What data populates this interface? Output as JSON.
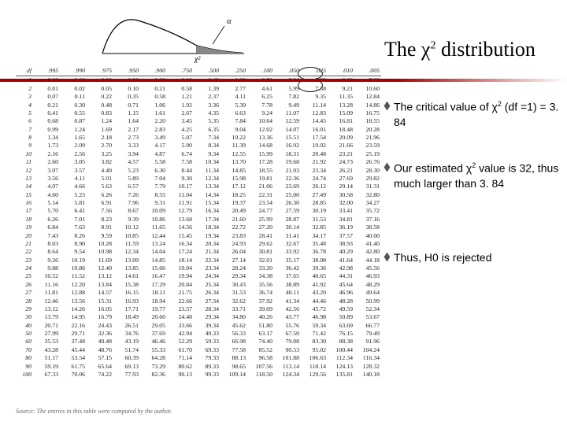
{
  "title_prefix": "The ",
  "title_symbol": "χ",
  "title_sup": "2",
  "title_suffix": " distribution",
  "curve": {
    "alpha_label": "α",
    "chi2_label": "χ²"
  },
  "notes": {
    "n1_a": "The critical value of ",
    "n1_sym": "χ",
    "n1_b": " (df =1) = 3. 84",
    "n2_a": "Our estimated ",
    "n2_sym": "χ",
    "n2_b": " value is 32, thus much larger than 3. 84",
    "n3_a": "Thus, H",
    "n3_b": " is rejected"
  },
  "table": {
    "headers": [
      "df",
      ".995",
      ".990",
      ".975",
      ".950",
      ".900",
      ".750",
      ".500",
      ".250",
      ".100",
      ".050",
      ".025",
      ".010",
      ".005"
    ],
    "rows": [
      [
        "1",
        "0.00",
        "0.00",
        "0.00",
        "0.00",
        "0.02",
        "0.10",
        "0.45",
        "1.32",
        "2.71",
        "3.84",
        "5.02",
        "6.63",
        "7.88"
      ],
      [
        "2",
        "0.01",
        "0.02",
        "0.05",
        "0.10",
        "0.21",
        "0.58",
        "1.39",
        "2.77",
        "4.61",
        "5.99",
        "7.38",
        "9.21",
        "10.60"
      ],
      [
        "3",
        "0.07",
        "0.11",
        "0.22",
        "0.35",
        "0.58",
        "1.21",
        "2.37",
        "4.11",
        "6.25",
        "7.82",
        "9.35",
        "11.35",
        "12.84"
      ],
      [
        "4",
        "0.21",
        "0.30",
        "0.48",
        "0.71",
        "1.06",
        "1.92",
        "3.36",
        "5.39",
        "7.78",
        "9.49",
        "11.14",
        "13.28",
        "14.86"
      ],
      [
        "5",
        "0.41",
        "0.55",
        "0.83",
        "1.15",
        "1.61",
        "2.67",
        "4.35",
        "6.63",
        "9.24",
        "11.07",
        "12.83",
        "15.09",
        "16.75"
      ],
      [
        "6",
        "0.68",
        "0.87",
        "1.24",
        "1.64",
        "2.20",
        "3.45",
        "5.35",
        "7.84",
        "10.64",
        "12.59",
        "14.45",
        "16.81",
        "18.55"
      ],
      [
        "7",
        "0.99",
        "1.24",
        "1.69",
        "2.17",
        "2.83",
        "4.25",
        "6.35",
        "9.04",
        "12.02",
        "14.07",
        "16.01",
        "18.48",
        "20.28"
      ],
      [
        "8",
        "1.34",
        "1.65",
        "2.18",
        "2.73",
        "3.49",
        "5.07",
        "7.34",
        "10.22",
        "13.36",
        "15.51",
        "17.54",
        "20.09",
        "21.96"
      ],
      [
        "9",
        "1.73",
        "2.09",
        "2.70",
        "3.33",
        "4.17",
        "5.90",
        "8.34",
        "11.39",
        "14.68",
        "16.92",
        "19.02",
        "21.66",
        "23.59"
      ],
      [
        "10",
        "2.16",
        "2.56",
        "3.25",
        "3.94",
        "4.87",
        "6.74",
        "9.34",
        "12.55",
        "15.99",
        "18.31",
        "20.48",
        "23.21",
        "25.19"
      ],
      [
        "11",
        "2.60",
        "3.05",
        "3.82",
        "4.57",
        "5.58",
        "7.58",
        "10.34",
        "13.70",
        "17.28",
        "19.68",
        "21.92",
        "24.73",
        "26.76"
      ],
      [
        "12",
        "3.07",
        "3.57",
        "4.40",
        "5.23",
        "6.30",
        "8.44",
        "11.34",
        "14.85",
        "18.55",
        "21.03",
        "23.34",
        "26.21",
        "28.30"
      ],
      [
        "13",
        "3.56",
        "4.11",
        "5.01",
        "5.89",
        "7.04",
        "9.30",
        "12.34",
        "15.98",
        "19.81",
        "22.36",
        "24.74",
        "27.69",
        "29.82"
      ],
      [
        "14",
        "4.07",
        "4.66",
        "5.63",
        "6.57",
        "7.79",
        "10.17",
        "13.34",
        "17.12",
        "21.06",
        "23.69",
        "26.12",
        "29.14",
        "31.31"
      ],
      [
        "15",
        "4.60",
        "5.23",
        "6.26",
        "7.26",
        "8.55",
        "11.04",
        "14.34",
        "18.25",
        "22.31",
        "25.00",
        "27.49",
        "30.58",
        "32.80"
      ],
      [
        "16",
        "5.14",
        "5.81",
        "6.91",
        "7.96",
        "9.31",
        "11.91",
        "15.34",
        "19.37",
        "23.54",
        "26.30",
        "28.85",
        "32.00",
        "34.27"
      ],
      [
        "17",
        "5.70",
        "6.41",
        "7.56",
        "8.67",
        "10.09",
        "12.79",
        "16.34",
        "20.49",
        "24.77",
        "27.59",
        "30.19",
        "33.41",
        "35.72"
      ],
      [
        "18",
        "6.26",
        "7.01",
        "8.23",
        "9.39",
        "10.86",
        "13.68",
        "17.34",
        "21.60",
        "25.99",
        "28.87",
        "31.53",
        "34.81",
        "37.16"
      ],
      [
        "19",
        "6.84",
        "7.63",
        "8.91",
        "10.12",
        "11.65",
        "14.56",
        "18.34",
        "22.72",
        "27.20",
        "30.14",
        "32.85",
        "36.19",
        "38.58"
      ],
      [
        "20",
        "7.43",
        "8.26",
        "9.59",
        "10.85",
        "12.44",
        "15.45",
        "19.34",
        "23.83",
        "28.41",
        "31.41",
        "34.17",
        "37.57",
        "40.00"
      ],
      [
        "21",
        "8.03",
        "8.90",
        "10.28",
        "11.59",
        "13.24",
        "16.34",
        "20.34",
        "24.93",
        "29.62",
        "32.67",
        "35.48",
        "38.93",
        "41.40"
      ],
      [
        "22",
        "8.64",
        "9.54",
        "10.98",
        "12.34",
        "14.04",
        "17.24",
        "21.34",
        "26.04",
        "30.81",
        "33.92",
        "36.78",
        "40.29",
        "42.80"
      ],
      [
        "23",
        "9.26",
        "10.19",
        "11.69",
        "13.09",
        "14.85",
        "18.14",
        "22.34",
        "27.14",
        "32.01",
        "35.17",
        "38.08",
        "41.64",
        "44.18"
      ],
      [
        "24",
        "9.88",
        "10.86",
        "12.40",
        "13.85",
        "15.66",
        "19.04",
        "23.34",
        "28.24",
        "33.20",
        "36.42",
        "39.36",
        "42.98",
        "45.56"
      ],
      [
        "25",
        "10.52",
        "11.52",
        "13.12",
        "14.61",
        "16.47",
        "19.94",
        "24.34",
        "29.34",
        "34.38",
        "37.65",
        "40.65",
        "44.31",
        "46.93"
      ],
      [
        "26",
        "11.16",
        "12.20",
        "13.84",
        "15.38",
        "17.29",
        "20.84",
        "25.34",
        "30.43",
        "35.56",
        "38.89",
        "41.92",
        "45.64",
        "48.29"
      ],
      [
        "27",
        "11.81",
        "12.88",
        "14.57",
        "16.15",
        "18.11",
        "21.75",
        "26.34",
        "31.53",
        "36.74",
        "40.11",
        "43.20",
        "46.96",
        "49.64"
      ],
      [
        "28",
        "12.46",
        "13.56",
        "15.31",
        "16.93",
        "18.94",
        "22.66",
        "27.34",
        "32.62",
        "37.92",
        "41.34",
        "44.46",
        "48.28",
        "50.99"
      ],
      [
        "29",
        "13.12",
        "14.26",
        "16.05",
        "17.71",
        "19.77",
        "23.57",
        "28.34",
        "33.71",
        "39.09",
        "42.56",
        "45.72",
        "49.59",
        "52.34"
      ],
      [
        "30",
        "13.79",
        "14.95",
        "16.79",
        "18.49",
        "20.60",
        "24.48",
        "29.34",
        "34.80",
        "40.26",
        "43.77",
        "46.98",
        "50.89",
        "53.67"
      ],
      [
        "40",
        "20.71",
        "22.16",
        "24.43",
        "26.51",
        "29.05",
        "33.66",
        "39.34",
        "45.62",
        "51.80",
        "55.76",
        "59.34",
        "63.69",
        "66.77"
      ],
      [
        "50",
        "27.99",
        "29.71",
        "32.36",
        "34.76",
        "37.69",
        "42.94",
        "49.33",
        "56.33",
        "63.17",
        "67.50",
        "71.42",
        "76.15",
        "79.49"
      ],
      [
        "60",
        "35.53",
        "37.48",
        "40.48",
        "43.19",
        "46.46",
        "52.29",
        "59.33",
        "66.98",
        "74.40",
        "79.08",
        "83.30",
        "88.38",
        "91.96"
      ],
      [
        "70",
        "43.28",
        "45.44",
        "48.76",
        "51.74",
        "55.33",
        "61.70",
        "69.33",
        "77.58",
        "85.52",
        "90.53",
        "95.02",
        "100.44",
        "104.24"
      ],
      [
        "80",
        "51.17",
        "53.54",
        "57.15",
        "60.39",
        "64.28",
        "71.14",
        "79.33",
        "88.13",
        "96.58",
        "101.88",
        "106.63",
        "112.34",
        "116.34"
      ],
      [
        "90",
        "59.19",
        "61.75",
        "65.64",
        "69.13",
        "73.29",
        "80.62",
        "89.33",
        "98.65",
        "107.56",
        "113.14",
        "118.14",
        "124.13",
        "128.32"
      ],
      [
        "100",
        "67.33",
        "70.06",
        "74.22",
        "77.93",
        "82.36",
        "90.13",
        "99.33",
        "109.14",
        "118.50",
        "124.34",
        "129.56",
        "135.81",
        "140.18"
      ]
    ]
  },
  "source_text": "Source: The entries in this table were computed by the author."
}
